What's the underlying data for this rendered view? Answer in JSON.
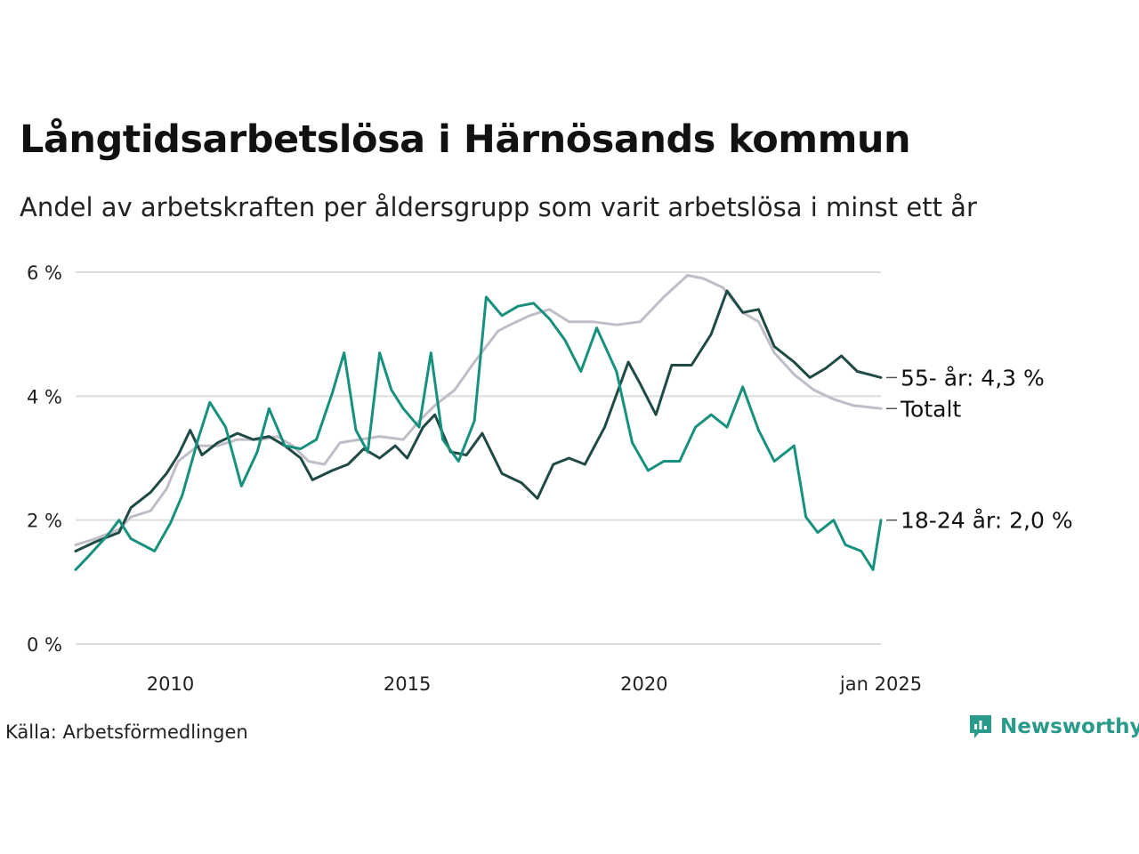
{
  "header": {
    "title": "Långtidsarbetslösa i Härnösands kommun",
    "subtitle": "Andel av arbetskraften per åldersgrupp som varit arbetslösa i minst ett år"
  },
  "footer": {
    "source": "Källa: Arbetsförmedlingen",
    "brand": "Newsworthy"
  },
  "colors": {
    "series_55": "#1f4a45",
    "series_totalt": "#c0bcc8",
    "series_18_24": "#17917e",
    "grid": "#dddddd",
    "brand": "#2a9a8a"
  },
  "icons": {
    "brand_logo": "newsworthy-logo-icon"
  },
  "chart_data": {
    "type": "line",
    "title": "Långtidsarbetslösa i Härnösands kommun",
    "subtitle": "Andel av arbetskraften per åldersgrupp som varit arbetslösa i minst ett år",
    "xlabel": "",
    "ylabel": "",
    "x_start": "2008-01",
    "x_end": "2025-01",
    "x_ticks": [
      {
        "date": "2010-01",
        "label": "2010"
      },
      {
        "date": "2015-01",
        "label": "2015"
      },
      {
        "date": "2020-01",
        "label": "2020"
      },
      {
        "date": "2025-01",
        "label": "jan 2025"
      }
    ],
    "ylim": [
      0,
      6
    ],
    "y_ticks": [
      {
        "value": 0,
        "label": "0 %"
      },
      {
        "value": 2,
        "label": "2 %"
      },
      {
        "value": 4,
        "label": "4 %"
      },
      {
        "value": 6,
        "label": "6 %"
      }
    ],
    "grid": true,
    "legend": "end-of-line labels",
    "series": [
      {
        "key": "series_55",
        "end_label": "55- år: 4,3 %",
        "points": [
          [
            "2008-01",
            1.5
          ],
          [
            "2008-06",
            1.65
          ],
          [
            "2008-12",
            1.8
          ],
          [
            "2009-03",
            2.2
          ],
          [
            "2009-08",
            2.45
          ],
          [
            "2009-12",
            2.75
          ],
          [
            "2010-03",
            3.05
          ],
          [
            "2010-06",
            3.45
          ],
          [
            "2010-09",
            3.05
          ],
          [
            "2011-01",
            3.25
          ],
          [
            "2011-06",
            3.4
          ],
          [
            "2011-10",
            3.3
          ],
          [
            "2012-02",
            3.35
          ],
          [
            "2012-06",
            3.2
          ],
          [
            "2012-10",
            3.0
          ],
          [
            "2013-01",
            2.65
          ],
          [
            "2013-06",
            2.8
          ],
          [
            "2013-10",
            2.9
          ],
          [
            "2014-02",
            3.15
          ],
          [
            "2014-06",
            3.0
          ],
          [
            "2014-10",
            3.2
          ],
          [
            "2015-01",
            3.0
          ],
          [
            "2015-05",
            3.5
          ],
          [
            "2015-08",
            3.7
          ],
          [
            "2015-12",
            3.1
          ],
          [
            "2016-04",
            3.05
          ],
          [
            "2016-08",
            3.4
          ],
          [
            "2017-01",
            2.75
          ],
          [
            "2017-06",
            2.6
          ],
          [
            "2017-10",
            2.35
          ],
          [
            "2018-02",
            2.9
          ],
          [
            "2018-06",
            3.0
          ],
          [
            "2018-10",
            2.9
          ],
          [
            "2019-03",
            3.5
          ],
          [
            "2019-09",
            4.55
          ],
          [
            "2019-12",
            4.2
          ],
          [
            "2020-04",
            3.7
          ],
          [
            "2020-08",
            4.5
          ],
          [
            "2021-01",
            4.5
          ],
          [
            "2021-06",
            5.0
          ],
          [
            "2021-10",
            5.7
          ],
          [
            "2022-02",
            5.35
          ],
          [
            "2022-06",
            5.4
          ],
          [
            "2022-10",
            4.8
          ],
          [
            "2023-03",
            4.55
          ],
          [
            "2023-07",
            4.3
          ],
          [
            "2023-11",
            4.45
          ],
          [
            "2024-03",
            4.65
          ],
          [
            "2024-07",
            4.4
          ],
          [
            "2024-10",
            4.35
          ],
          [
            "2025-01",
            4.3
          ]
        ]
      },
      {
        "key": "series_totalt",
        "end_label": "Totalt",
        "points": [
          [
            "2008-01",
            1.6
          ],
          [
            "2008-06",
            1.7
          ],
          [
            "2008-12",
            1.85
          ],
          [
            "2009-03",
            2.05
          ],
          [
            "2009-08",
            2.15
          ],
          [
            "2009-12",
            2.5
          ],
          [
            "2010-03",
            2.95
          ],
          [
            "2010-08",
            3.2
          ],
          [
            "2011-01",
            3.2
          ],
          [
            "2011-06",
            3.3
          ],
          [
            "2011-12",
            3.3
          ],
          [
            "2012-04",
            3.35
          ],
          [
            "2012-08",
            3.2
          ],
          [
            "2012-12",
            2.95
          ],
          [
            "2013-04",
            2.9
          ],
          [
            "2013-08",
            3.25
          ],
          [
            "2014-01",
            3.3
          ],
          [
            "2014-06",
            3.35
          ],
          [
            "2014-12",
            3.3
          ],
          [
            "2015-04",
            3.6
          ],
          [
            "2015-08",
            3.85
          ],
          [
            "2016-01",
            4.1
          ],
          [
            "2016-06",
            4.55
          ],
          [
            "2016-12",
            5.05
          ],
          [
            "2017-03",
            5.15
          ],
          [
            "2017-08",
            5.3
          ],
          [
            "2018-01",
            5.4
          ],
          [
            "2018-06",
            5.2
          ],
          [
            "2018-12",
            5.2
          ],
          [
            "2019-06",
            5.15
          ],
          [
            "2019-12",
            5.2
          ],
          [
            "2020-06",
            5.6
          ],
          [
            "2020-12",
            5.95
          ],
          [
            "2021-04",
            5.9
          ],
          [
            "2021-09",
            5.75
          ],
          [
            "2022-02",
            5.35
          ],
          [
            "2022-06",
            5.2
          ],
          [
            "2022-10",
            4.7
          ],
          [
            "2023-03",
            4.35
          ],
          [
            "2023-08",
            4.1
          ],
          [
            "2024-01",
            3.95
          ],
          [
            "2024-06",
            3.85
          ],
          [
            "2025-01",
            3.8
          ]
        ]
      },
      {
        "key": "series_18_24",
        "end_label": "18-24 år: 2,0 %",
        "points": [
          [
            "2008-01",
            1.2
          ],
          [
            "2008-04",
            1.4
          ],
          [
            "2008-09",
            1.75
          ],
          [
            "2008-12",
            2.0
          ],
          [
            "2009-03",
            1.7
          ],
          [
            "2009-09",
            1.5
          ],
          [
            "2010-01",
            1.95
          ],
          [
            "2010-04",
            2.4
          ],
          [
            "2010-08",
            3.3
          ],
          [
            "2010-11",
            3.9
          ],
          [
            "2011-03",
            3.5
          ],
          [
            "2011-07",
            2.55
          ],
          [
            "2011-11",
            3.1
          ],
          [
            "2012-02",
            3.8
          ],
          [
            "2012-06",
            3.2
          ],
          [
            "2012-10",
            3.15
          ],
          [
            "2013-02",
            3.3
          ],
          [
            "2013-06",
            4.05
          ],
          [
            "2013-09",
            4.7
          ],
          [
            "2013-12",
            3.45
          ],
          [
            "2014-03",
            3.1
          ],
          [
            "2014-06",
            4.7
          ],
          [
            "2014-09",
            4.1
          ],
          [
            "2014-12",
            3.8
          ],
          [
            "2015-04",
            3.5
          ],
          [
            "2015-07",
            4.7
          ],
          [
            "2015-10",
            3.3
          ],
          [
            "2016-02",
            2.95
          ],
          [
            "2016-06",
            3.6
          ],
          [
            "2016-09",
            5.6
          ],
          [
            "2017-01",
            5.3
          ],
          [
            "2017-05",
            5.45
          ],
          [
            "2017-09",
            5.5
          ],
          [
            "2018-01",
            5.25
          ],
          [
            "2018-05",
            4.9
          ],
          [
            "2018-09",
            4.4
          ],
          [
            "2019-01",
            5.1
          ],
          [
            "2019-06",
            4.4
          ],
          [
            "2019-10",
            3.25
          ],
          [
            "2020-02",
            2.8
          ],
          [
            "2020-06",
            2.95
          ],
          [
            "2020-10",
            2.95
          ],
          [
            "2021-02",
            3.5
          ],
          [
            "2021-06",
            3.7
          ],
          [
            "2021-10",
            3.5
          ],
          [
            "2022-02",
            4.15
          ],
          [
            "2022-06",
            3.45
          ],
          [
            "2022-10",
            2.95
          ],
          [
            "2023-03",
            3.2
          ],
          [
            "2023-06",
            2.05
          ],
          [
            "2023-09",
            1.8
          ],
          [
            "2024-01",
            2.0
          ],
          [
            "2024-04",
            1.6
          ],
          [
            "2024-08",
            1.5
          ],
          [
            "2024-11",
            1.2
          ],
          [
            "2025-01",
            2.0
          ]
        ]
      }
    ]
  }
}
